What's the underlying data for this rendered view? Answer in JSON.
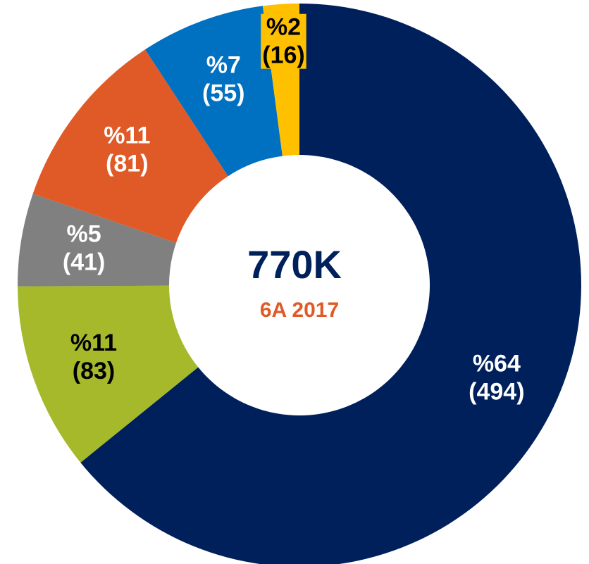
{
  "chart_data": {
    "type": "donut",
    "center_title": "770K",
    "center_subtitle": "6A 2017",
    "values": [
      494,
      83,
      41,
      81,
      55,
      16
    ],
    "value_labels": [
      "(494)",
      "(83)",
      "(41)",
      "(81)",
      "(55)",
      "(16)"
    ],
    "percents": [
      64,
      11,
      5,
      11,
      7,
      2
    ],
    "percent_labels": [
      "%64",
      "%11",
      "%5",
      "%11",
      "%7",
      "%2"
    ],
    "colors": [
      "#00205b",
      "#a5b92b",
      "#808080",
      "#e05a28",
      "#0070c0",
      "#ffc000"
    ],
    "label_colors": [
      "#ffffff",
      "#000000",
      "#ffffff",
      "#ffffff",
      "#ffffff",
      "#000000"
    ]
  }
}
